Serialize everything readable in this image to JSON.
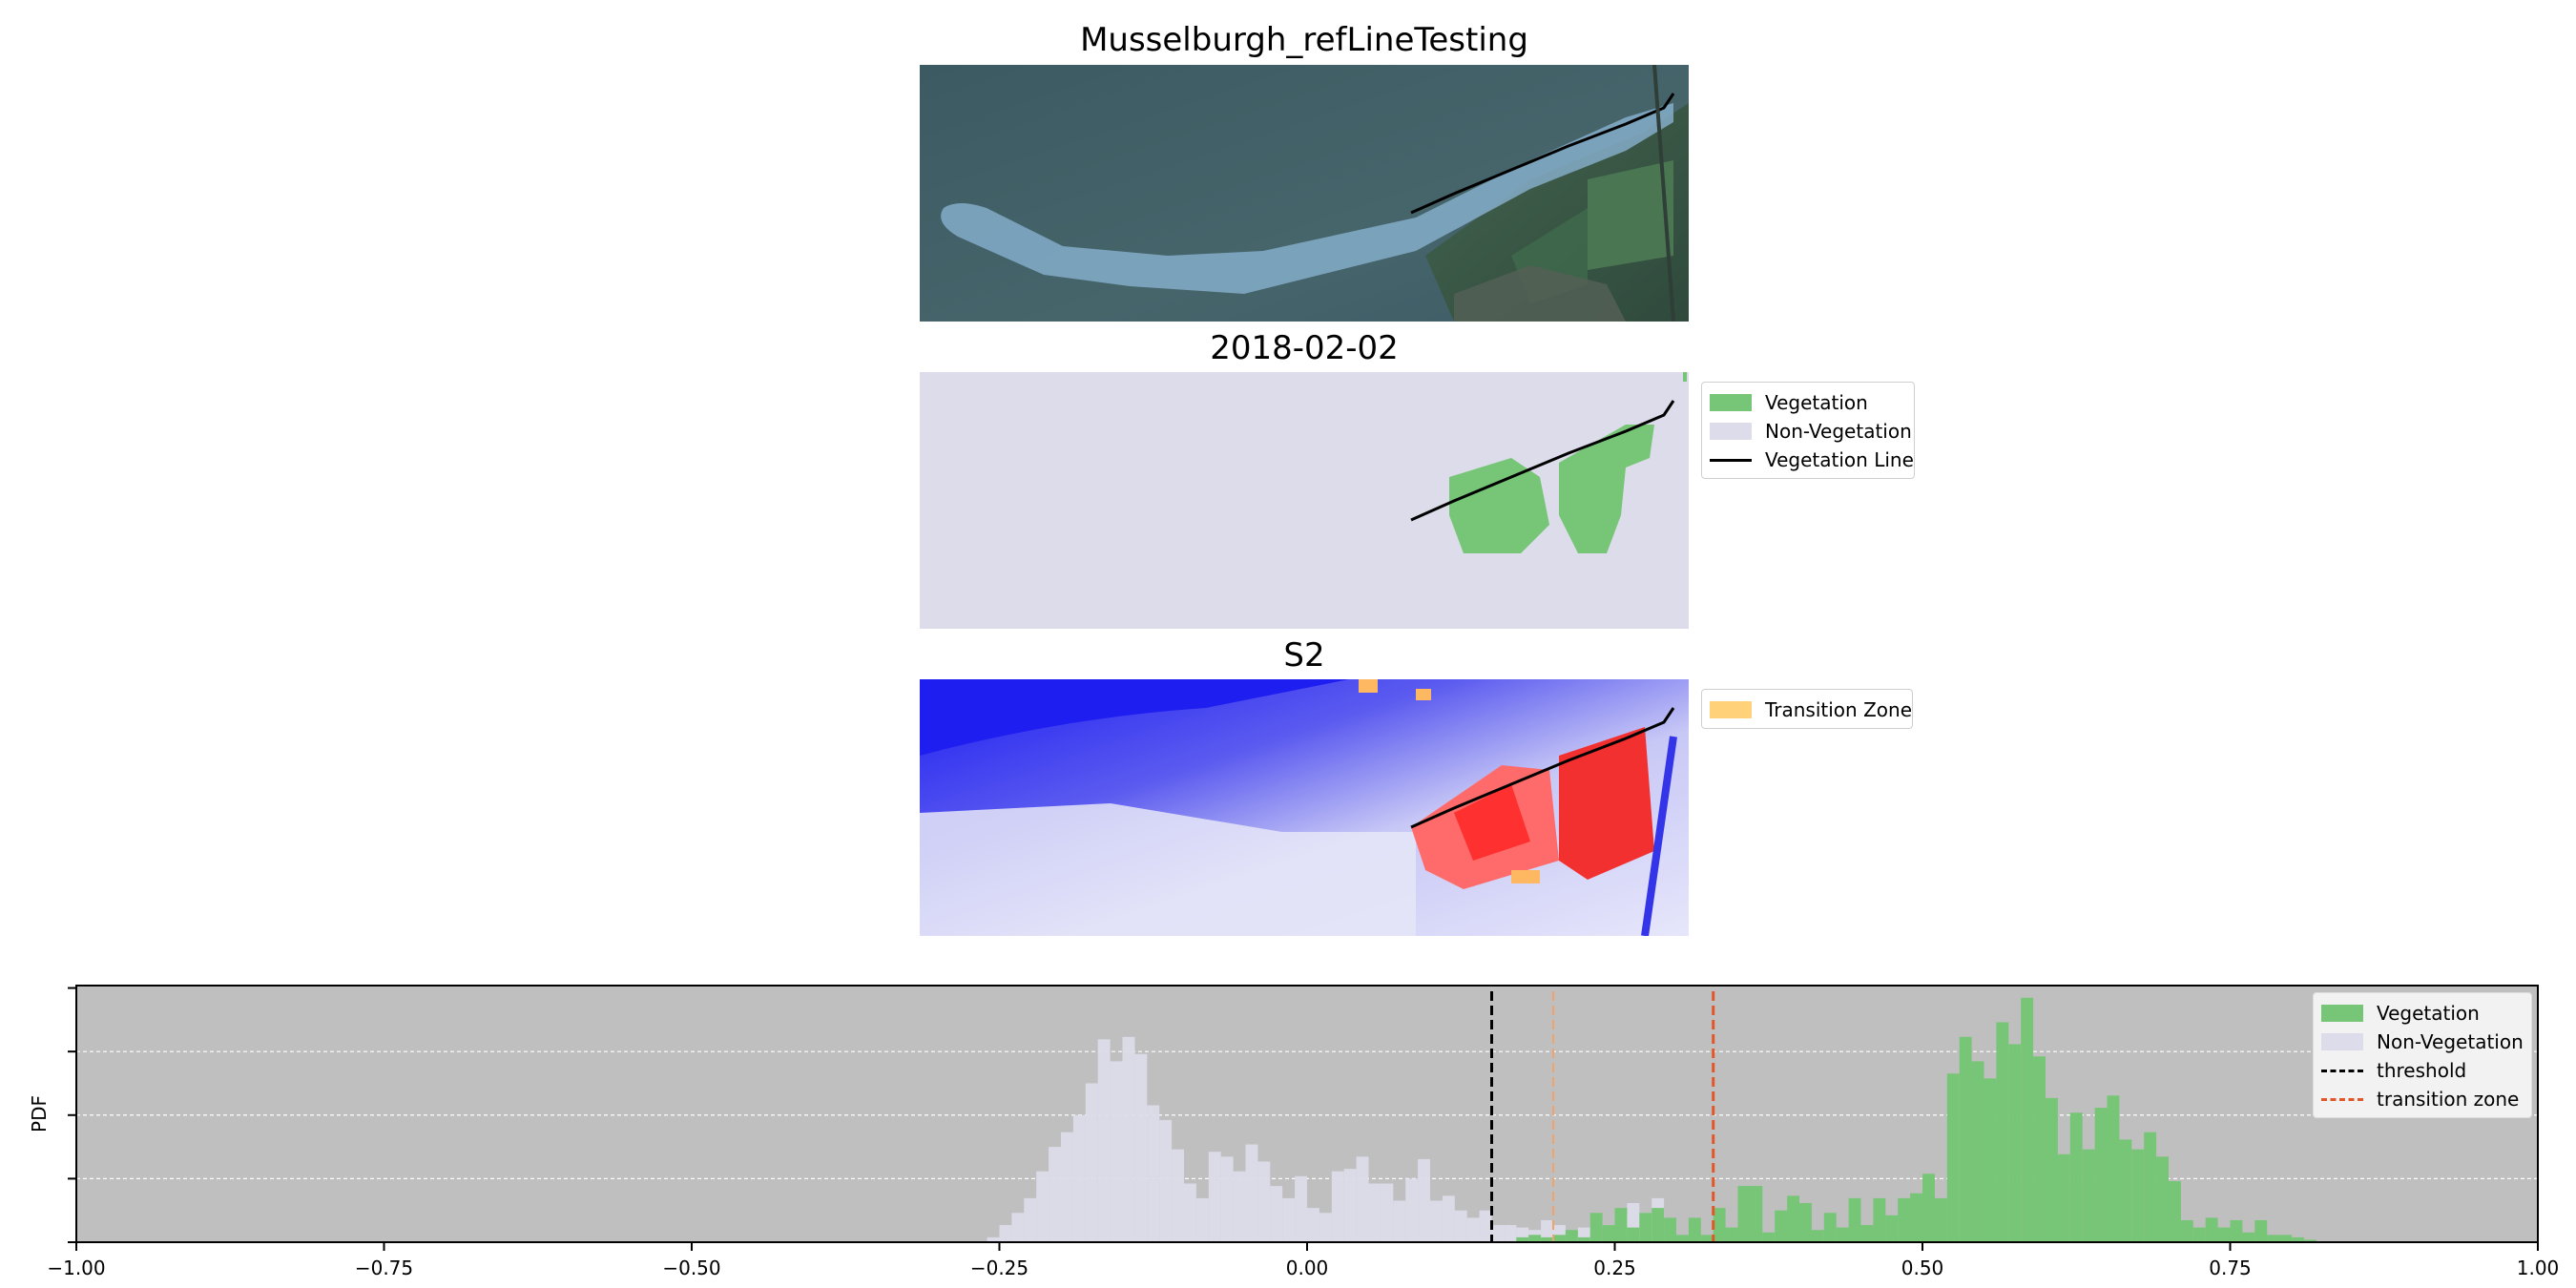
{
  "panels": {
    "rgb": {
      "title": "Musselburgh_refLineTesting"
    },
    "classified": {
      "title": "2018-02-02"
    },
    "index": {
      "title": "S2"
    }
  },
  "legend_classified": {
    "items": [
      {
        "label": "Vegetation",
        "kind": "patch",
        "color": "#77c576"
      },
      {
        "label": "Non-Vegetation",
        "kind": "patch",
        "color": "#dcdcea"
      },
      {
        "label": "Vegetation Line",
        "kind": "line",
        "color": "#000000"
      }
    ]
  },
  "legend_index": {
    "items": [
      {
        "label": "Transition Zone",
        "kind": "patch",
        "color": "#ffd27a"
      }
    ]
  },
  "legend_hist": {
    "items": [
      {
        "label": "Vegetation",
        "kind": "patch",
        "color": "#77c576"
      },
      {
        "label": "Non-Vegetation",
        "kind": "patch",
        "color": "#dcdcea"
      },
      {
        "label": "threshold",
        "kind": "dashed",
        "color": "#000000"
      },
      {
        "label": "transition zone",
        "kind": "dashed",
        "color": "#e2572a"
      }
    ]
  },
  "chart_data": {
    "type": "bar",
    "title": "",
    "xlabel": "",
    "ylabel": "PDF",
    "xlim": [
      -1.0,
      1.0
    ],
    "ylim": [
      0,
      10.5
    ],
    "xticks": [
      -1.0,
      -0.75,
      -0.5,
      -0.25,
      0.0,
      0.25,
      0.5,
      0.75,
      1.0
    ],
    "xtick_labels": [
      "−1.00",
      "−0.75",
      "−0.50",
      "−0.25",
      "0.00",
      "0.25",
      "0.50",
      "0.75",
      "1.00"
    ],
    "grid": "horizontal dashed",
    "background": "#bfbfbf",
    "legend_position": "top-right",
    "bin_width": 0.01,
    "threshold": 0.15,
    "transition_zone": [
      0.2,
      0.33
    ],
    "series": [
      {
        "name": "Non-Vegetation",
        "color": "#dcdcea",
        "bin_start": -0.26,
        "values": [
          0.2,
          0.7,
          1.2,
          1.8,
          2.9,
          3.9,
          4.5,
          5.2,
          6.5,
          8.3,
          7.4,
          8.4,
          7.7,
          5.6,
          5.0,
          3.8,
          2.4,
          1.8,
          3.7,
          3.5,
          2.9,
          4.0,
          3.3,
          2.3,
          1.8,
          2.7,
          1.4,
          1.2,
          2.9,
          3.0,
          3.5,
          2.4,
          2.4,
          1.7,
          2.6,
          3.4,
          1.7,
          1.9,
          1.3,
          1.0,
          1.3,
          0.7,
          0.7,
          0.6,
          0.5,
          0.9,
          0.7,
          0.3,
          0.6,
          0.9,
          0.7,
          1.1,
          1.6,
          1.2,
          1.8,
          0.9
        ]
      },
      {
        "name": "Vegetation",
        "color": "#77c576",
        "bin_start": 0.17,
        "values": [
          0.2,
          0.3,
          0.2,
          0.3,
          0.5,
          0.2,
          1.2,
          0.7,
          1.4,
          0.6,
          1.2,
          1.4,
          1.0,
          0.3,
          1.0,
          0.3,
          1.4,
          0.6,
          2.3,
          2.3,
          0.4,
          1.3,
          1.9,
          1.6,
          0.5,
          1.2,
          0.6,
          1.8,
          0.7,
          1.8,
          1.1,
          1.8,
          2.0,
          2.8,
          1.8,
          6.9,
          8.4,
          7.4,
          6.7,
          9.0,
          8.1,
          10.0,
          7.6,
          5.9,
          3.6,
          5.3,
          3.8,
          5.5,
          6.0,
          4.2,
          3.8,
          4.5,
          3.5,
          2.5,
          0.9,
          0.6,
          1.0,
          0.6,
          0.9,
          0.4,
          0.9,
          0.3,
          0.3,
          0.2,
          0.1
        ]
      }
    ]
  }
}
